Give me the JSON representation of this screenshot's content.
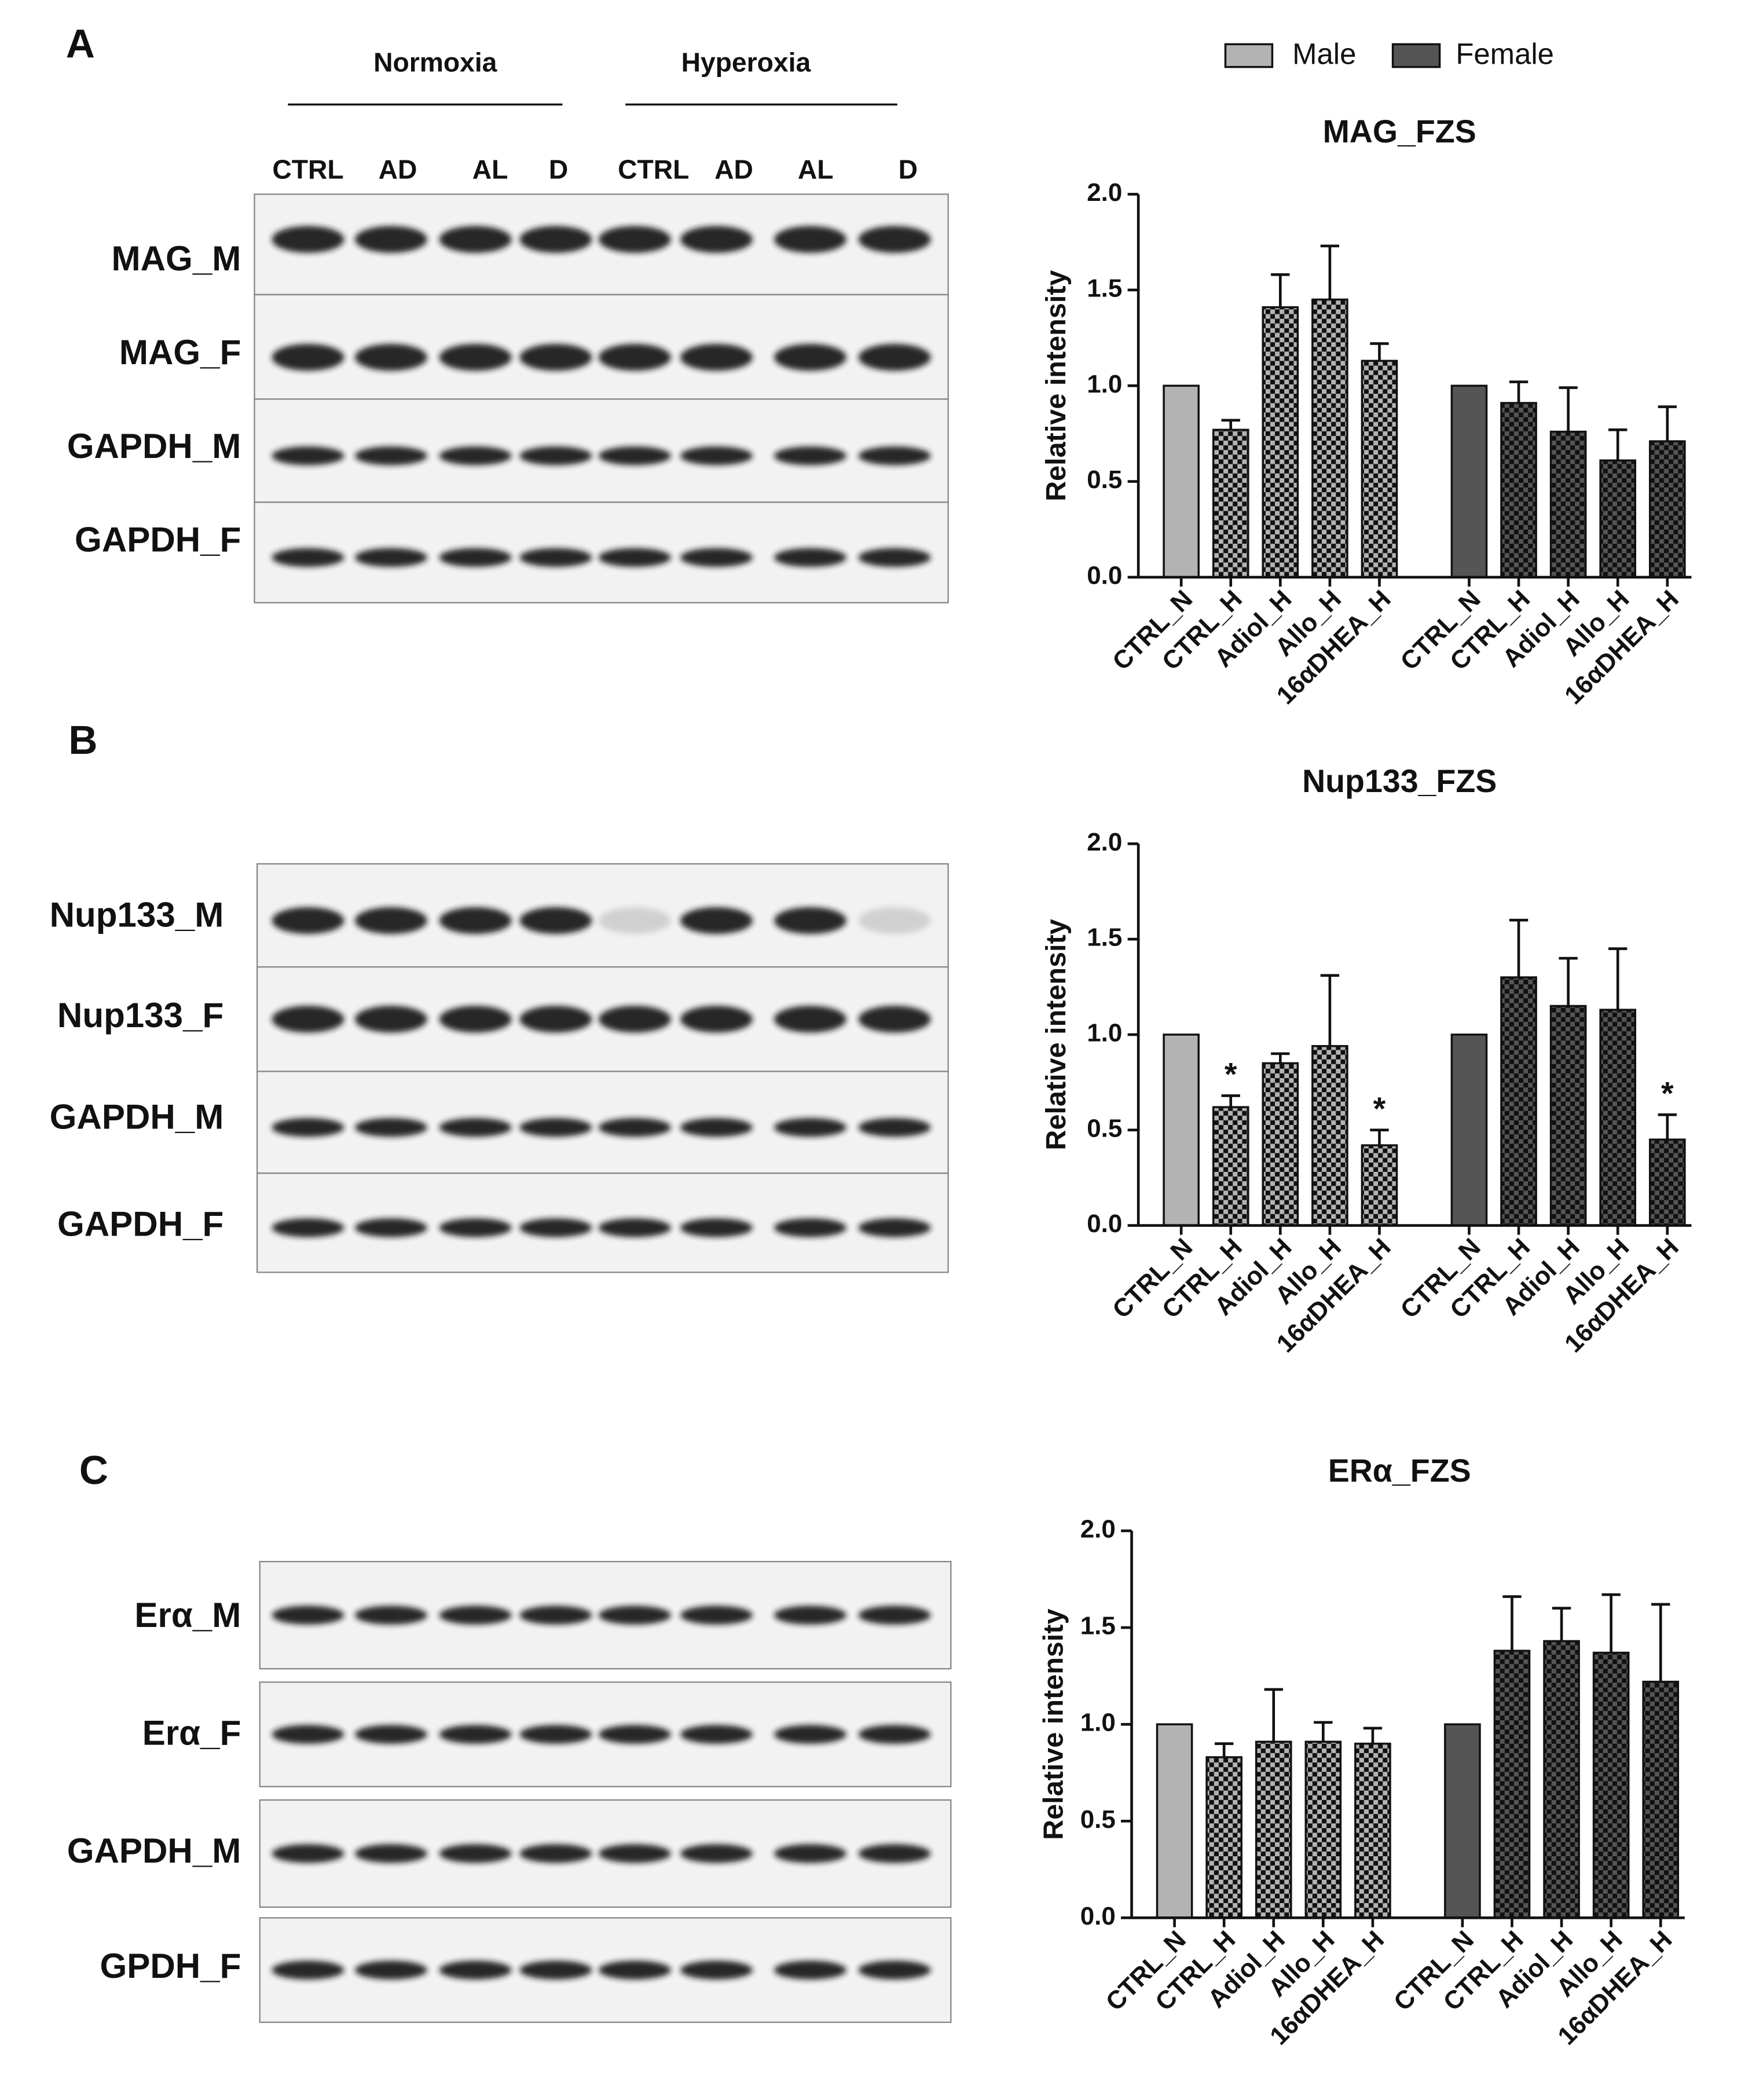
{
  "legend": [
    {
      "name": "Male",
      "color": "#b3b3b3"
    },
    {
      "name": "Female",
      "color": "#555555"
    }
  ],
  "blots": [
    {
      "panel": "A",
      "groups": [
        "Normoxia",
        "Hyperoxia"
      ],
      "lanes": [
        "CTRL",
        "AD",
        "AL",
        "D",
        "CTRL",
        "AD",
        "AL",
        "D"
      ],
      "rows": [
        "MAG_M",
        "MAG_F",
        "GAPDH_M",
        "GAPDH_F"
      ]
    },
    {
      "panel": "B",
      "rows": [
        "Nup133_M",
        "Nup133_F",
        "GAPDH_M",
        "GAPDH_F"
      ]
    },
    {
      "panel": "C",
      "rows": [
        "Erα_M",
        "Erα_F",
        "GAPDH_M",
        "GPDH_F"
      ]
    }
  ],
  "chart_data": [
    {
      "type": "bar",
      "title": "MAG_FZS",
      "y_label": "Relative intensity",
      "categories": [
        "CTRL_N",
        "CTRL_H",
        "Adiol_H",
        "Allo_H",
        "16αDHEA_H",
        "CTRL_N",
        "CTRL_H",
        "Adiol_H",
        "Allo_H",
        "16αDHEA_H"
      ],
      "series": [
        {
          "color": "#b3b3b3",
          "values": [
            1.0,
            0.77,
            1.41,
            1.45,
            1.13,
            null,
            null,
            null,
            null,
            null
          ],
          "errors": [
            null,
            0.05,
            0.17,
            0.28,
            0.09,
            null,
            null,
            null,
            null,
            null
          ]
        },
        {
          "color": "#555555",
          "values": [
            null,
            null,
            null,
            null,
            null,
            1.0,
            0.91,
            0.76,
            0.61,
            0.71
          ],
          "errors": [
            null,
            null,
            null,
            null,
            null,
            null,
            0.11,
            0.23,
            0.16,
            0.18
          ]
        }
      ],
      "ylim": [
        0,
        2
      ],
      "yticks": [
        {
          "value": 0,
          "label": "0.0"
        },
        0.5,
        {
          "value": 1,
          "label": "1.0"
        },
        1.5,
        {
          "value": 2,
          "label": "2.0"
        }
      ]
    },
    {
      "type": "bar",
      "title": "Nup133_FZS",
      "y_label": "Relative intensity",
      "categories": [
        "CTRL_N",
        "CTRL_H",
        "Adiol_H",
        "Allo_H",
        "16αDHEA_H",
        "CTRL_N",
        "CTRL_H",
        "Adiol_H",
        "Allo_H",
        "16αDHEA_H"
      ],
      "series": [
        {
          "color": "#b3b3b3",
          "values": [
            1.0,
            0.62,
            0.85,
            0.94,
            0.42,
            null,
            null,
            null,
            null,
            null
          ],
          "errors": [
            null,
            0.06,
            0.05,
            0.37,
            0.08,
            null,
            null,
            null,
            null,
            null
          ],
          "significance": [
            null,
            "*",
            null,
            null,
            "*",
            null,
            null,
            null,
            null,
            null
          ]
        },
        {
          "color": "#555555",
          "values": [
            null,
            null,
            null,
            null,
            null,
            1.0,
            1.3,
            1.15,
            1.13,
            0.45
          ],
          "errors": [
            null,
            null,
            null,
            null,
            null,
            null,
            0.3,
            0.25,
            0.32,
            0.13
          ],
          "significance": [
            null,
            null,
            null,
            null,
            null,
            null,
            null,
            null,
            null,
            "*"
          ]
        }
      ],
      "ylim": [
        0,
        2
      ],
      "yticks": [
        {
          "value": 0,
          "label": "0.0"
        },
        0.5,
        {
          "value": 1,
          "label": "1.0"
        },
        1.5,
        {
          "value": 2,
          "label": "2.0"
        }
      ]
    },
    {
      "type": "bar",
      "title": "ERα_FZS",
      "y_label": "Relative intensity",
      "categories": [
        "CTRL_N",
        "CTRL_H",
        "Adiol_H",
        "Allo_H",
        "16αDHEA_H",
        "CTRL_N",
        "CTRL_H",
        "Adiol_H",
        "Allo_H",
        "16αDHEA_H"
      ],
      "series": [
        {
          "color": "#b3b3b3",
          "values": [
            1.0,
            0.83,
            0.91,
            0.91,
            0.9,
            null,
            null,
            null,
            null,
            null
          ],
          "errors": [
            null,
            0.07,
            0.27,
            0.1,
            0.08,
            null,
            null,
            null,
            null,
            null
          ]
        },
        {
          "color": "#555555",
          "values": [
            null,
            null,
            null,
            null,
            null,
            1.0,
            1.38,
            1.43,
            1.37,
            1.22
          ],
          "errors": [
            null,
            null,
            null,
            null,
            null,
            null,
            0.28,
            0.17,
            0.3,
            0.4
          ]
        }
      ],
      "ylim": [
        0,
        2
      ],
      "yticks": [
        {
          "value": 0,
          "label": "0.0"
        },
        0.5,
        {
          "value": 1,
          "label": "1.0"
        },
        1.5,
        {
          "value": 2,
          "label": "2.0"
        }
      ]
    }
  ]
}
